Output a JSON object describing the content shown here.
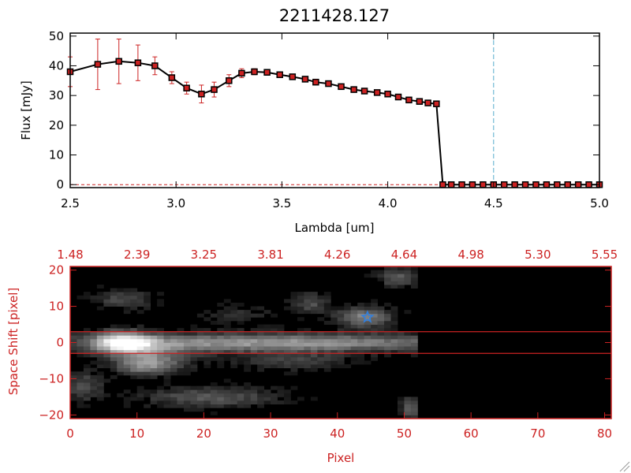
{
  "chart_data": [
    {
      "type": "line",
      "title": "2211428.127",
      "xlabel": "Lambda [um]",
      "ylabel": "Flux [mJy]",
      "xlim": [
        2.5,
        5.0
      ],
      "ylim": [
        -1,
        51
      ],
      "xticks": [
        2.5,
        3.0,
        3.5,
        4.0,
        4.5,
        5.0
      ],
      "xtick_labels": [
        "2.5",
        "3.0",
        "3.5",
        "4.0",
        "4.5",
        "5.0"
      ],
      "yticks": [
        0,
        10,
        20,
        30,
        40,
        50
      ],
      "ytick_labels": [
        "0",
        "10",
        "20",
        "30",
        "40",
        "50"
      ],
      "line_color": "#000000",
      "marker_color": "#cc2222",
      "errorbar_color": "#cc2222",
      "vline": {
        "x": 4.5,
        "color": "#55aacc",
        "style": "dashed"
      },
      "hline": {
        "y": 0,
        "color": "#cc2222",
        "style": "dashed"
      },
      "series": [
        {
          "x": [
            2.5,
            2.63,
            2.73,
            2.82,
            2.9,
            2.98,
            3.05,
            3.12,
            3.18,
            3.25,
            3.31,
            3.37,
            3.43,
            3.49,
            3.55,
            3.61,
            3.66,
            3.72,
            3.78,
            3.84,
            3.89,
            3.95,
            4.0,
            4.05,
            4.1,
            4.15,
            4.19,
            4.23,
            4.26,
            4.3,
            4.35,
            4.4,
            4.45,
            4.5,
            4.55,
            4.6,
            4.65,
            4.7,
            4.75,
            4.8,
            4.85,
            4.9,
            4.95,
            5.0
          ],
          "y": [
            38,
            40.5,
            41.5,
            41,
            40,
            36,
            32.5,
            30.5,
            32,
            35,
            37.5,
            38,
            37.8,
            37,
            36.3,
            35.5,
            34.5,
            34,
            33,
            32,
            31.5,
            31,
            30.5,
            29.5,
            28.5,
            28,
            27.5,
            27.2,
            0,
            0,
            0,
            0,
            0,
            0,
            0,
            0,
            0,
            0,
            0,
            0,
            0,
            0,
            0,
            0
          ],
          "yerr": [
            5,
            8.5,
            7.5,
            6,
            3,
            2,
            2,
            3,
            2.5,
            2,
            1.5,
            1,
            0.6,
            0.5,
            0.5,
            0.5,
            0.5,
            0.5,
            0.5,
            0.5,
            0.5,
            0.5,
            0.5,
            0.5,
            0.5,
            0.5,
            0.5,
            0.5,
            0,
            0,
            0,
            0,
            0,
            0,
            0,
            0,
            0,
            0,
            0,
            0,
            0,
            0,
            0,
            0
          ]
        }
      ]
    },
    {
      "type": "heatmap",
      "xlabel": "Pixel",
      "ylabel": "Space Shift [pixel]",
      "xlim": [
        0,
        81
      ],
      "ylim": [
        -21,
        21
      ],
      "xticks": [
        0,
        10,
        20,
        30,
        40,
        50,
        60,
        70,
        80
      ],
      "xtick_labels": [
        "0",
        "10",
        "20",
        "30",
        "40",
        "50",
        "60",
        "70",
        "80"
      ],
      "yticks": [
        -20,
        -10,
        0,
        10,
        20
      ],
      "ytick_labels": [
        "−20",
        "−10",
        "0",
        "10",
        "20"
      ],
      "top_xticks": [
        0,
        10,
        20,
        30,
        40,
        50,
        60,
        70,
        80
      ],
      "top_xtick_labels": [
        "1.48",
        "2.39",
        "3.25",
        "3.81",
        "4.26",
        "4.64",
        "4.98",
        "5.30",
        "5.55"
      ],
      "axis_color": "#cc2222",
      "data_extent_px": 52,
      "extraction_window": [
        -3,
        3
      ],
      "window_color": "#cc2222",
      "marker": {
        "x": 44.5,
        "y": 7,
        "symbol": "star",
        "color": "#2f7fe0"
      },
      "sources": [
        {
          "x": 8,
          "y": 0,
          "sx": 3,
          "sy": 2.2,
          "amp": 0.85
        },
        {
          "x": 30,
          "y": 0,
          "sx": 22,
          "sy": 1.8,
          "amp": 0.6
        },
        {
          "x": 13,
          "y": -4,
          "sx": 4,
          "sy": 2.5,
          "amp": 0.35
        },
        {
          "x": 11,
          "y": -6.5,
          "sx": 3,
          "sy": 1.8,
          "amp": 0.4
        },
        {
          "x": 21,
          "y": -15,
          "sx": 7,
          "sy": 2,
          "amp": 0.35
        },
        {
          "x": 8,
          "y": 12,
          "sx": 3,
          "sy": 2,
          "amp": 0.3
        },
        {
          "x": 44,
          "y": 7,
          "sx": 3,
          "sy": 2,
          "amp": 0.5
        },
        {
          "x": 36,
          "y": 11,
          "sx": 2,
          "sy": 2,
          "amp": 0.3
        },
        {
          "x": 49,
          "y": 18,
          "sx": 2,
          "sy": 2,
          "amp": 0.35
        },
        {
          "x": 2,
          "y": -12,
          "sx": 2,
          "sy": 3,
          "amp": 0.3
        },
        {
          "x": 33,
          "y": -5,
          "sx": 6,
          "sy": 1.8,
          "amp": 0.25
        },
        {
          "x": 25,
          "y": 8,
          "sx": 4,
          "sy": 2,
          "amp": 0.15
        },
        {
          "x": 51,
          "y": -18,
          "sx": 1,
          "sy": 2,
          "amp": 0.4
        }
      ]
    }
  ]
}
